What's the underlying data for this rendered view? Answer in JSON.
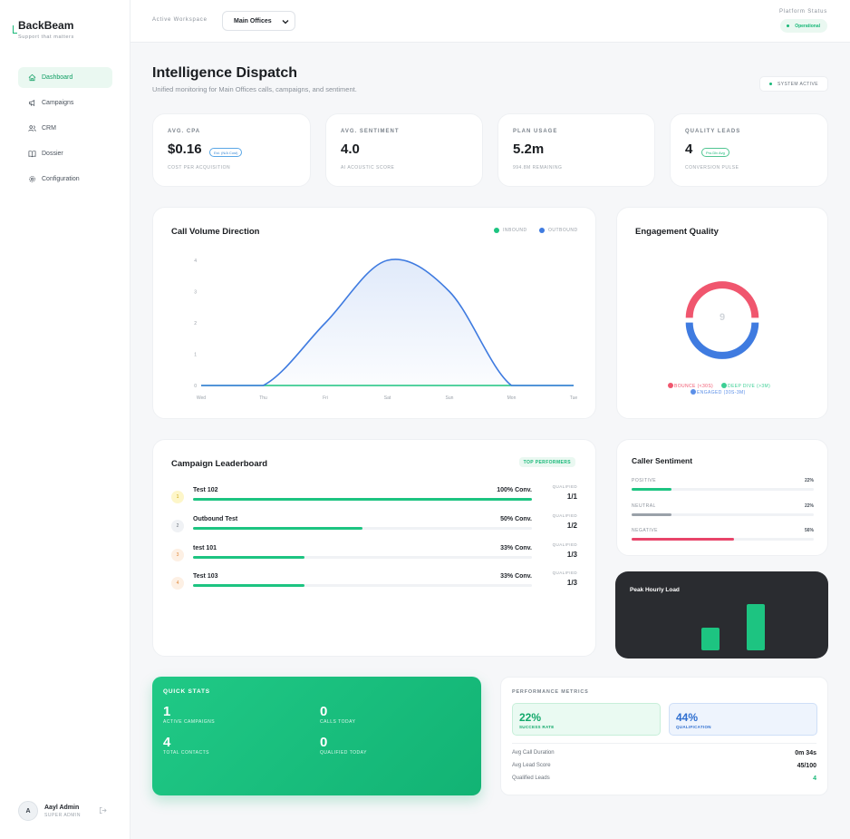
{
  "brand": {
    "name": "BackBeam",
    "tagline": "Support that matters"
  },
  "sidebar": {
    "items": [
      {
        "label": "Dashboard",
        "icon": "home-icon",
        "active": true
      },
      {
        "label": "Campaigns",
        "icon": "megaphone-icon",
        "active": false
      },
      {
        "label": "CRM",
        "icon": "users-icon",
        "active": false
      },
      {
        "label": "Dossier",
        "icon": "book-icon",
        "active": false
      },
      {
        "label": "Configuration",
        "icon": "gear-icon",
        "active": false
      }
    ],
    "user": {
      "initial": "A",
      "name": "Aayl Admin",
      "role": "SUPER ADMIN"
    }
  },
  "topbar": {
    "workspace_label": "Active Workspace",
    "workspace_value": "Main Offices",
    "status_label": "Platform Status",
    "status_value": "Operational"
  },
  "header": {
    "title": "Intelligence Dispatch",
    "subtitle": "Unified monitoring for Main Offices calls, campaigns, and sentiment.",
    "badge": "SYSTEM ACTIVE"
  },
  "kpis": [
    {
      "label": "AVG. CPA",
      "value": "$0.16",
      "chip": "Est. (N/A Cost)",
      "foot": "COST PER ACQUISITION"
    },
    {
      "label": "AVG. SENTIMENT",
      "value": "4.0",
      "chip": "",
      "foot": "AI ACOUSTIC SCORE"
    },
    {
      "label": "PLAN USAGE",
      "value": "5.2m",
      "chip": "",
      "foot": "994.8M REMAINING"
    },
    {
      "label": "QUALITY LEADS",
      "value": "4",
      "chip": "Pro.Dlv Avg",
      "foot": "CONVERSION PULSE"
    }
  ],
  "call_volume": {
    "title": "Call Volume Direction",
    "legend": [
      "INBOUND",
      "OUTBOUND"
    ],
    "colors": {
      "inbound": "#1dc481",
      "outbound": "#3f7be0"
    }
  },
  "chart_data": {
    "type": "line",
    "categories": [
      "Wed",
      "Thu",
      "Fri",
      "Sat",
      "Sun",
      "Mon",
      "Tue"
    ],
    "series": [
      {
        "name": "INBOUND",
        "values": [
          0,
          0,
          0,
          0,
          0,
          0,
          0
        ]
      },
      {
        "name": "OUTBOUND",
        "values": [
          0,
          0,
          2,
          4,
          3,
          0,
          0
        ]
      }
    ],
    "yticks": [
      0,
      1,
      2,
      3,
      4
    ],
    "ylim": [
      0,
      4
    ]
  },
  "engagement": {
    "title": "Engagement Quality",
    "center": "9",
    "legend": [
      {
        "label": "BOUNCE (<30S)",
        "color": "#f0566e"
      },
      {
        "label": "DEEP DIVE (>3M)",
        "color": "#3ccf95"
      },
      {
        "label": "ENGAGED (30S-3M)",
        "color": "#5b8fe8"
      }
    ]
  },
  "leaderboard": {
    "title": "Campaign Leaderboard",
    "badge": "TOP PERFORMERS",
    "qualified_label": "QUALIFIED",
    "rows": [
      {
        "rank": "1",
        "name": "Test 102",
        "conv": "100% Conv.",
        "qualified": "1/1",
        "progress": 1.0
      },
      {
        "rank": "2",
        "name": "Outbound Test",
        "conv": "50% Conv.",
        "qualified": "1/2",
        "progress": 0.5
      },
      {
        "rank": "3",
        "name": "test 101",
        "conv": "33% Conv.",
        "qualified": "1/3",
        "progress": 0.33
      },
      {
        "rank": "4",
        "name": "Test 103",
        "conv": "33% Conv.",
        "qualified": "1/3",
        "progress": 0.33
      }
    ]
  },
  "sentiment": {
    "title": "Caller Sentiment",
    "rows": [
      {
        "label": "POSITIVE",
        "pct": "22%",
        "value": 0.22,
        "color": "#1dc481"
      },
      {
        "label": "NEUTRAL",
        "pct": "22%",
        "value": 0.22,
        "color": "#9aa1a9"
      },
      {
        "label": "NEGATIVE",
        "pct": "56%",
        "value": 0.56,
        "color": "#e8456a"
      }
    ]
  },
  "peak": {
    "title": "Peak Hourly Load",
    "bars": [
      0.5,
      1.0
    ]
  },
  "quick_stats": {
    "title": "QUICK STATS",
    "items": [
      {
        "value": "1",
        "label": "ACTIVE CAMPAIGNS"
      },
      {
        "value": "0",
        "label": "CALLS TODAY"
      },
      {
        "value": "4",
        "label": "TOTAL CONTACTS"
      },
      {
        "value": "0",
        "label": "QUALIFIED TODAY"
      }
    ]
  },
  "performance": {
    "title": "PERFORMANCE METRICS",
    "boxes": [
      {
        "value": "22%",
        "label": "SUCCESS RATE"
      },
      {
        "value": "44%",
        "label": "QUALIFICATION"
      }
    ],
    "rows": [
      {
        "label": "Avg Call Duration",
        "value": "0m 34s"
      },
      {
        "label": "Avg Lead Score",
        "value": "45/100"
      },
      {
        "label": "Qualified Leads",
        "value": "4"
      }
    ]
  }
}
